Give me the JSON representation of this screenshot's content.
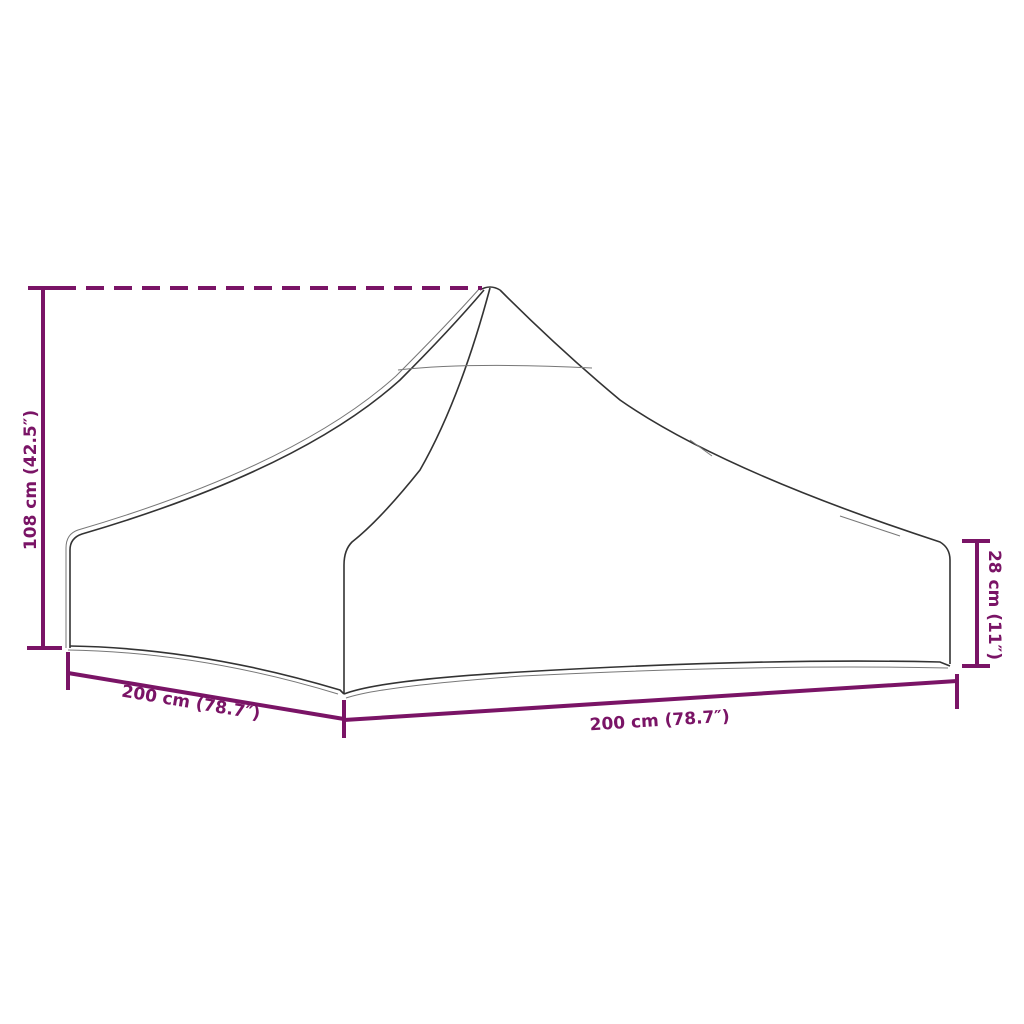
{
  "colors": {
    "dimension": "#7a1466",
    "outline": "#333333",
    "background": "#ffffff"
  },
  "dimensions": {
    "height_total": "108 cm (42.5″)",
    "depth": "200 cm (78.7″)",
    "width": "200 cm (78.7″)",
    "side_height": "28 cm (11″)"
  }
}
